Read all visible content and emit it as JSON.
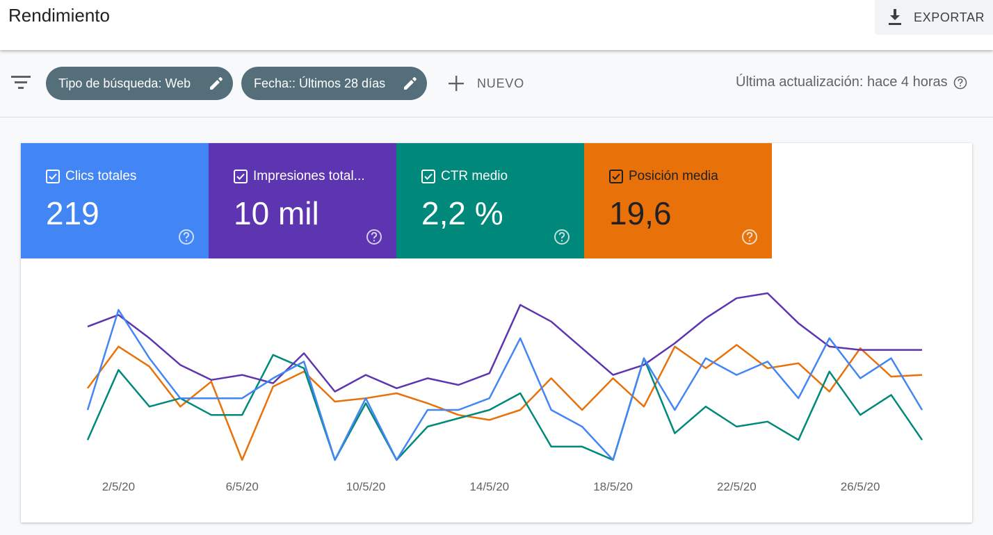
{
  "header": {
    "title": "Rendimiento",
    "export_label": "EXPORTAR"
  },
  "filters": {
    "search_type_chip": "Tipo de búsqueda: Web",
    "date_chip": "Fecha:: Últimos 28 días",
    "new_label": "NUEVO",
    "last_update": "Última actualización: hace 4 horas"
  },
  "metrics": [
    {
      "label": "Clics totales",
      "value": "219",
      "color": "#4285f4"
    },
    {
      "label": "Impresiones total...",
      "value": "10 mil",
      "color": "#5e35b1"
    },
    {
      "label": "CTR medio",
      "value": "2,2 %",
      "color": "#00897b"
    },
    {
      "label": "Posición media",
      "value": "19,6",
      "color": "#e8710a"
    }
  ],
  "chart_data": {
    "type": "line",
    "x": [
      "1/5/20",
      "2/5/20",
      "3/5/20",
      "4/5/20",
      "5/5/20",
      "6/5/20",
      "7/5/20",
      "8/5/20",
      "9/5/20",
      "10/5/20",
      "11/5/20",
      "12/5/20",
      "13/5/20",
      "14/5/20",
      "15/5/20",
      "16/5/20",
      "17/5/20",
      "18/5/20",
      "19/5/20",
      "20/5/20",
      "21/5/20",
      "22/5/20",
      "23/5/20",
      "24/5/20",
      "25/5/20",
      "26/5/20",
      "27/5/20",
      "28/5/20"
    ],
    "x_tick_labels": [
      "2/5/20",
      "6/5/20",
      "10/5/20",
      "14/5/20",
      "18/5/20",
      "22/5/20",
      "26/5/20"
    ],
    "ylim": [
      0,
      1
    ],
    "grid": false,
    "series": [
      {
        "name": "Clics totales",
        "color": "#4285f4",
        "values": [
          0.3,
          0.9,
          0.61,
          0.37,
          0.37,
          0.37,
          0.49,
          0.59,
          0.0,
          0.37,
          0.0,
          0.3,
          0.3,
          0.37,
          0.73,
          0.3,
          0.2,
          0.0,
          0.61,
          0.3,
          0.61,
          0.51,
          0.59,
          0.37,
          0.73,
          0.49,
          0.61,
          0.3
        ]
      },
      {
        "name": "Impresiones totales",
        "color": "#5e35b1",
        "values": [
          0.8,
          0.87,
          0.73,
          0.57,
          0.48,
          0.51,
          0.46,
          0.64,
          0.41,
          0.51,
          0.43,
          0.49,
          0.45,
          0.52,
          0.93,
          0.83,
          0.67,
          0.51,
          0.57,
          0.7,
          0.85,
          0.97,
          1.0,
          0.82,
          0.68,
          0.66,
          0.66,
          0.66
        ]
      },
      {
        "name": "CTR medio",
        "color": "#00897b",
        "values": [
          0.12,
          0.54,
          0.32,
          0.37,
          0.27,
          0.27,
          0.63,
          0.55,
          0.0,
          0.34,
          0.0,
          0.2,
          0.25,
          0.3,
          0.4,
          0.08,
          0.08,
          0.0,
          0.61,
          0.16,
          0.32,
          0.2,
          0.23,
          0.12,
          0.53,
          0.27,
          0.39,
          0.12
        ]
      },
      {
        "name": "Posición media",
        "color": "#e8710a",
        "values": [
          0.43,
          0.68,
          0.56,
          0.32,
          0.47,
          0.0,
          0.44,
          0.53,
          0.35,
          0.37,
          0.4,
          0.34,
          0.27,
          0.24,
          0.3,
          0.49,
          0.3,
          0.49,
          0.32,
          0.68,
          0.55,
          0.69,
          0.55,
          0.58,
          0.41,
          0.67,
          0.5,
          0.51
        ]
      }
    ]
  }
}
